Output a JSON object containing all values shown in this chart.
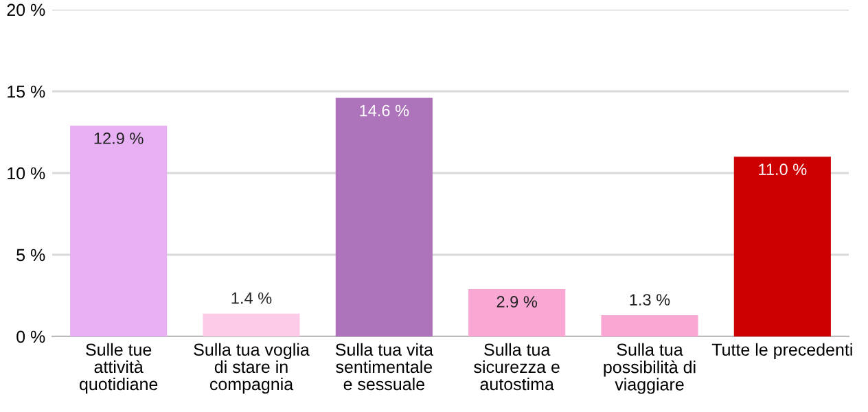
{
  "chart_data": {
    "type": "bar",
    "categories": [
      "Sulle tue\nattività\nquotidiane",
      "Sulla tua voglia\ndi stare in\ncompagnia",
      "Sulla tua vita\nsentimentale\ne sessuale",
      "Sulla tua\nsicurezza e\nautostima",
      "Sulla tua\npossibilità di\nviaggiare",
      "Tutte le precedenti"
    ],
    "values": [
      12.9,
      1.4,
      14.6,
      2.9,
      1.3,
      11.0
    ],
    "colors": [
      "#e6b0f2",
      "#fccbe8",
      "#ae74bb",
      "#f9a8d4",
      "#f9a8d4",
      "#cc0000"
    ],
    "value_labels": [
      "12.9 %",
      "1.4 %",
      "14.6 %",
      "2.9 %",
      "1.3 %",
      "11.0 %"
    ],
    "ylim": [
      0,
      20
    ],
    "yticks": [
      {
        "value": 0,
        "label": "0 %"
      },
      {
        "value": 5,
        "label": "5 %"
      },
      {
        "value": 10,
        "label": "10 %"
      },
      {
        "value": 15,
        "label": "15 %"
      },
      {
        "value": 20,
        "label": "20 %"
      }
    ],
    "grid": "y"
  }
}
